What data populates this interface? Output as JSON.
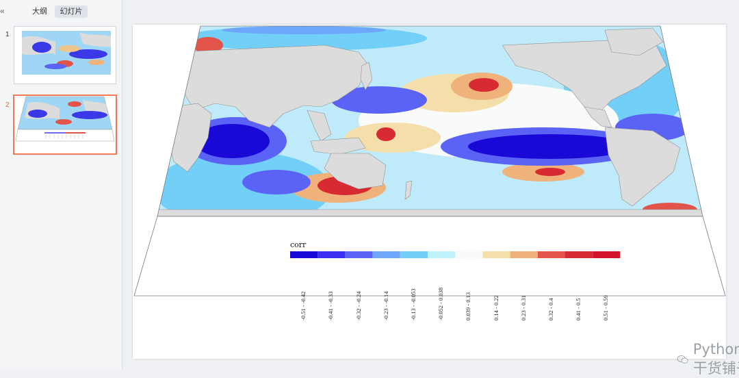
{
  "left_panel": {
    "collapse_icon": "«",
    "tabs": [
      {
        "label": "大纲",
        "active": false
      },
      {
        "label": "幻灯片",
        "active": true
      }
    ],
    "slides": [
      {
        "number": "1",
        "selected": false
      },
      {
        "number": "2",
        "selected": true
      }
    ]
  },
  "slide": {
    "colorbar_title": "corr",
    "colorbar": [
      {
        "label": "-0.51 - -0.42",
        "color": "#1a08d6"
      },
      {
        "label": "-0.41 - -0.33",
        "color": "#3a2ef0"
      },
      {
        "label": "-0.32 - -0.24",
        "color": "#5a63f6"
      },
      {
        "label": "-0.23 - -0.14",
        "color": "#6ea7f9"
      },
      {
        "label": "-0.13 - -0.053",
        "color": "#72cff7"
      },
      {
        "label": "-0.052 - 0.038",
        "color": "#bff2fb"
      },
      {
        "label": "0.039 - 0.13",
        "color": "#f9fbfb"
      },
      {
        "label": "0.14 - 0.22",
        "color": "#f4deaa"
      },
      {
        "label": "0.23 - 0.31",
        "color": "#eeb27a"
      },
      {
        "label": "0.32 - 0.4",
        "color": "#e2534a"
      },
      {
        "label": "0.41 - 0.5",
        "color": "#d82a33"
      },
      {
        "label": "0.51 - 0.59",
        "color": "#d4132c"
      }
    ],
    "colors": {
      "land": "#dcdcdc",
      "land_border": "#8f8f8f",
      "accent": "#f27a55"
    }
  },
  "watermark": {
    "text": "Python干货铺子",
    "icon": "wechat-icon"
  }
}
